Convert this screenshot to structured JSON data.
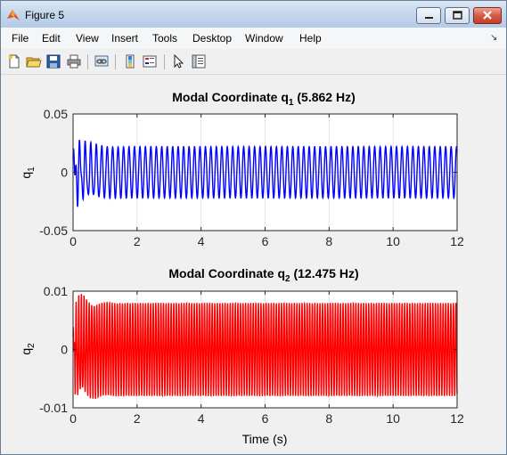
{
  "window": {
    "title": "Figure 5"
  },
  "menu": [
    "File",
    "Edit",
    "View",
    "Insert",
    "Tools",
    "Desktop",
    "Window",
    "Help"
  ],
  "toolbar": [
    "new-figure",
    "open-file",
    "save-figure",
    "print-figure",
    "link-plot",
    "insert-colorbar",
    "insert-legend",
    "edit-plot",
    "open-property-inspector"
  ],
  "xlabel_shared": "Time (s)",
  "chart_data": [
    {
      "type": "line",
      "title_main": "Modal Coordinate q",
      "title_sub": "1",
      "title_tail": " (5.862 Hz)",
      "ylabel_main": "q",
      "ylabel_sub": "1",
      "xlim": [
        0,
        12
      ],
      "ylim": [
        -0.05,
        0.05
      ],
      "xticks": [
        "0",
        "2",
        "4",
        "6",
        "8",
        "10",
        "12"
      ],
      "yticks": [
        "-0.05",
        "0",
        "0.05"
      ],
      "grid": true,
      "color": "#0000ff",
      "series": [
        {
          "frequency_hz": 5.862,
          "steady_amplitude": 0.022,
          "peak_transient": 0.04,
          "duration": [
            0,
            12
          ]
        }
      ]
    },
    {
      "type": "line",
      "title_main": "Modal Coordinate q",
      "title_sub": "2",
      "title_tail": " (12.475 Hz)",
      "ylabel_main": "q",
      "ylabel_sub": "2",
      "xlabel": "Time (s)",
      "xlim": [
        0,
        12
      ],
      "ylim": [
        -0.01,
        0.01
      ],
      "xticks": [
        "0",
        "2",
        "4",
        "6",
        "8",
        "10",
        "12"
      ],
      "yticks": [
        "-0.01",
        "0",
        "0.01"
      ],
      "grid": true,
      "color": "#ff0000",
      "series": [
        {
          "frequency_hz": 12.475,
          "steady_amplitude": 0.008,
          "peak_transient": 0.0115,
          "duration": [
            0,
            12
          ]
        }
      ]
    }
  ]
}
